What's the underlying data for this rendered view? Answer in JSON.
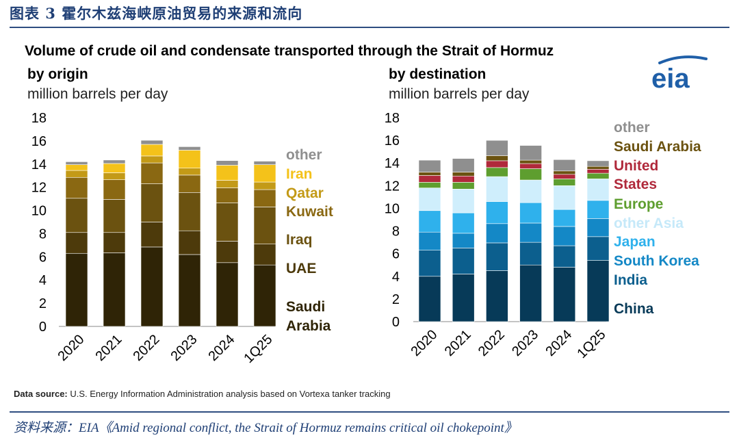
{
  "figure_title": "图表 3   霍尔木兹海峡原油贸易的来源和流向",
  "chart_title": "Volume of crude oil and condensate transported through the Strait of Hormuz",
  "source_label": "Data source:",
  "source_text": " U.S. Energy Information Administration analysis based on Vortexa tanker tracking",
  "footer": "资料来源：EIA《Amid regional conflict, the Strait of Hormuz remains critical oil chokepoint》",
  "logo_text": "eia",
  "colors": {
    "rule": "#2e4d80",
    "title_blue": "#1f3f75",
    "logo_blue": "#1f5fa8"
  },
  "chart_data": [
    {
      "type": "bar",
      "stacked": true,
      "title": "by origin",
      "ylabel": "million barrels per day",
      "categories": [
        "2020",
        "2021",
        "2022",
        "2023",
        "2024",
        "1Q25"
      ],
      "ylim": [
        0,
        18
      ],
      "yticks": [
        0,
        2,
        4,
        6,
        8,
        10,
        12,
        14,
        16,
        18
      ],
      "legend_position": "right",
      "series": [
        {
          "name": "Saudi Arabia",
          "color": "#2f2406",
          "values": [
            6.3,
            6.35,
            6.85,
            6.2,
            5.5,
            5.3
          ]
        },
        {
          "name": "UAE",
          "color": "#4d3a0b",
          "values": [
            1.8,
            1.75,
            2.15,
            2.05,
            1.85,
            1.8
          ]
        },
        {
          "name": "Iraq",
          "color": "#6b5210",
          "values": [
            2.95,
            2.85,
            3.3,
            3.3,
            3.3,
            3.2
          ]
        },
        {
          "name": "Kuwait",
          "color": "#8a6812",
          "values": [
            1.8,
            1.7,
            1.8,
            1.5,
            1.3,
            1.5
          ]
        },
        {
          "name": "Qatar",
          "color": "#c39a17",
          "values": [
            0.6,
            0.6,
            0.6,
            0.6,
            0.65,
            0.65
          ]
        },
        {
          "name": "Iran",
          "color": "#f4c21a",
          "values": [
            0.5,
            0.8,
            1.0,
            1.55,
            1.3,
            1.5
          ]
        },
        {
          "name": "other",
          "color": "#8f8f8f",
          "values": [
            0.25,
            0.3,
            0.35,
            0.3,
            0.4,
            0.3
          ]
        }
      ]
    },
    {
      "type": "bar",
      "stacked": true,
      "title": "by destination",
      "ylabel": "million barrels per day",
      "categories": [
        "2020",
        "2021",
        "2022",
        "2023",
        "2024",
        "1Q25"
      ],
      "ylim": [
        0,
        18
      ],
      "yticks": [
        0,
        2,
        4,
        6,
        8,
        10,
        12,
        14,
        16,
        18
      ],
      "legend_position": "right",
      "series": [
        {
          "name": "China",
          "color": "#073a58",
          "values": [
            4.0,
            4.2,
            4.5,
            5.0,
            4.8,
            5.4
          ]
        },
        {
          "name": "India",
          "color": "#0c5f8e",
          "values": [
            2.3,
            2.3,
            2.45,
            2.0,
            1.9,
            2.1
          ]
        },
        {
          "name": "South Korea",
          "color": "#1488c6",
          "values": [
            1.6,
            1.3,
            1.7,
            1.7,
            1.7,
            1.6
          ]
        },
        {
          "name": "Japan",
          "color": "#2fb1ec",
          "values": [
            1.9,
            1.8,
            1.95,
            1.8,
            1.5,
            1.6
          ]
        },
        {
          "name": "other Asia",
          "color": "#cfeefc",
          "values": [
            2.0,
            2.1,
            2.2,
            2.0,
            2.1,
            1.9
          ]
        },
        {
          "name": "Europe",
          "color": "#5e9e2f",
          "values": [
            0.5,
            0.6,
            0.8,
            1.0,
            0.6,
            0.5
          ]
        },
        {
          "name": "United States",
          "color": "#b0293b",
          "values": [
            0.6,
            0.55,
            0.6,
            0.45,
            0.4,
            0.35
          ]
        },
        {
          "name": "Saudi Arabia",
          "color": "#6b5210",
          "values": [
            0.3,
            0.35,
            0.45,
            0.3,
            0.3,
            0.25
          ]
        },
        {
          "name": "other",
          "color": "#8f8f8f",
          "values": [
            1.05,
            1.2,
            1.35,
            1.3,
            1.0,
            0.5
          ]
        }
      ]
    }
  ],
  "legends": [
    [
      {
        "text": "other",
        "color": "#8f8f8f"
      },
      {
        "text": "Iran",
        "color": "#f4c21a"
      },
      {
        "text": "Qatar",
        "color": "#c39a17"
      },
      {
        "text": "Kuwait",
        "color": "#8a6812"
      },
      {
        "text": "Iraq",
        "color": "#6b5210"
      },
      {
        "text": "UAE",
        "color": "#4d3a0b"
      },
      {
        "text": "Saudi",
        "color": "#2f2406"
      },
      {
        "text": "Arabia",
        "color": "#2f2406"
      }
    ],
    [
      {
        "text": "other",
        "color": "#8f8f8f"
      },
      {
        "text": "Saudi Arabia",
        "color": "#6b5210"
      },
      {
        "text": "United",
        "color": "#b0293b"
      },
      {
        "text": "States",
        "color": "#b0293b"
      },
      {
        "text": "Europe",
        "color": "#5e9e2f"
      },
      {
        "text": "other Asia",
        "color": "#c6e9f9"
      },
      {
        "text": "Japan",
        "color": "#2fb1ec"
      },
      {
        "text": "South Korea",
        "color": "#1488c6"
      },
      {
        "text": "India",
        "color": "#0c5f8e"
      },
      {
        "text": "China",
        "color": "#073a58"
      }
    ]
  ]
}
